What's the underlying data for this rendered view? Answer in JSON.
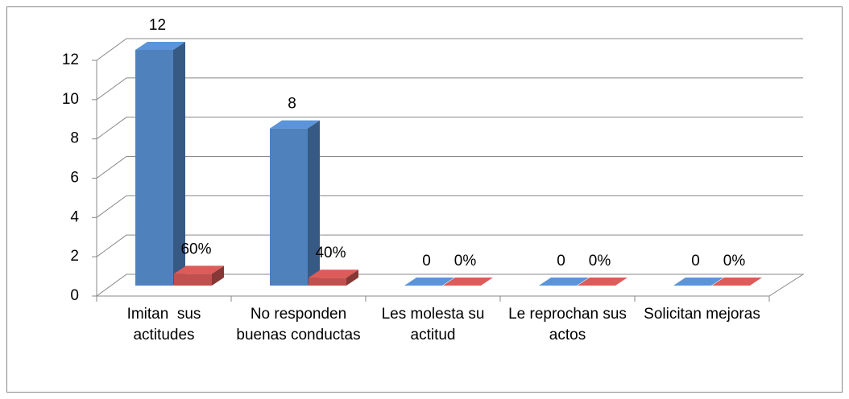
{
  "chart_data": {
    "type": "bar3d",
    "categories": [
      "Imitan  sus actitudes",
      "No responden buenas conductas",
      "Les molesta su actitud",
      "Le reprochan sus actos",
      "Solicitan mejoras"
    ],
    "series": [
      {
        "color": "#4f81bd",
        "values": [
          12,
          8,
          0,
          0,
          0
        ]
      },
      {
        "color": "#c0504d",
        "values": [
          0.6,
          0.4,
          0,
          0,
          0
        ],
        "value_labels": [
          "60%",
          "40%",
          "0%",
          "0%",
          "0%"
        ]
      }
    ],
    "ylim": [
      0,
      12
    ],
    "yticks": [
      0,
      2,
      4,
      6,
      8,
      10,
      12
    ],
    "grid": true
  }
}
